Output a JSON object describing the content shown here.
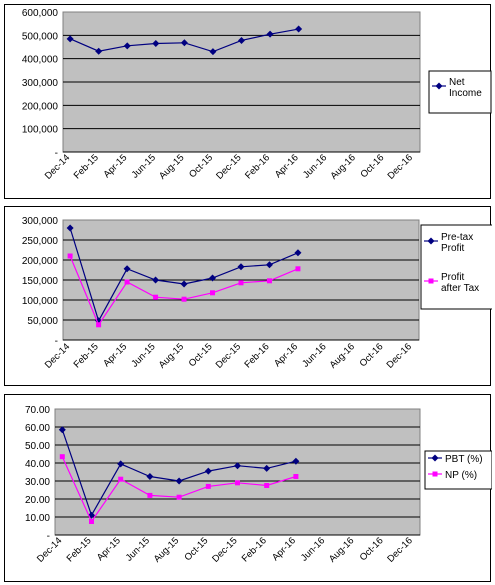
{
  "chart_data": [
    {
      "type": "line",
      "categories": [
        "Dec-14",
        "Feb-15",
        "Apr-15",
        "Jun-15",
        "Aug-15",
        "Oct-15",
        "Dec-15",
        "Feb-16",
        "Apr-16",
        "Jun-16",
        "Aug-16",
        "Oct-16",
        "Dec-16"
      ],
      "y_ticks": [
        "600,000",
        "500,000",
        "400,000",
        "300,000",
        "200,000",
        "100,000",
        "-"
      ],
      "ylim": [
        0,
        600000
      ],
      "grid": true,
      "legend_position": "right",
      "series": [
        {
          "name": "Net Income",
          "name_lines": [
            "Net",
            "Income"
          ],
          "color": "#000080",
          "marker": "diamond",
          "points": [
            [
              0,
              485000
            ],
            [
              2,
              432000
            ],
            [
              4,
              455000
            ],
            [
              6,
              465000
            ],
            [
              8,
              468000
            ],
            [
              10,
              430000
            ],
            [
              12,
              478000
            ],
            [
              14,
              505000
            ],
            [
              16,
              527000
            ]
          ]
        }
      ]
    },
    {
      "type": "line",
      "categories": [
        "Dec-14",
        "Feb-15",
        "Apr-15",
        "Jun-15",
        "Aug-15",
        "Oct-15",
        "Dec-15",
        "Feb-16",
        "Apr-16",
        "Jun-16",
        "Aug-16",
        "Oct-16",
        "Dec-16"
      ],
      "y_ticks": [
        "300,000",
        "250,000",
        "200,000",
        "150,000",
        "100,000",
        "50,000",
        "-"
      ],
      "ylim": [
        0,
        300000
      ],
      "grid": true,
      "legend_position": "right",
      "series": [
        {
          "name": "Pre-tax Profit",
          "name_lines": [
            "Pre-tax",
            "Profit"
          ],
          "color": "#000080",
          "marker": "diamond",
          "points": [
            [
              0,
              280000
            ],
            [
              2,
              48000
            ],
            [
              4,
              178000
            ],
            [
              6,
              150000
            ],
            [
              8,
              140000
            ],
            [
              10,
              155000
            ],
            [
              12,
              183000
            ],
            [
              14,
              188000
            ],
            [
              16,
              218000
            ]
          ]
        },
        {
          "name": "Profit after Tax",
          "name_lines": [
            "Profit",
            "after Tax"
          ],
          "color": "#ff00ff",
          "marker": "square",
          "points": [
            [
              0,
              210000
            ],
            [
              2,
              38000
            ],
            [
              4,
              145000
            ],
            [
              6,
              107000
            ],
            [
              8,
              102000
            ],
            [
              10,
              118000
            ],
            [
              12,
              143000
            ],
            [
              14,
              148000
            ],
            [
              16,
              178000
            ]
          ]
        }
      ]
    },
    {
      "type": "line",
      "categories": [
        "Dec-14",
        "Feb-15",
        "Apr-15",
        "Jun-15",
        "Aug-15",
        "Oct-15",
        "Dec-15",
        "Feb-16",
        "Apr-16",
        "Jun-16",
        "Aug-16",
        "Oct-16",
        "Dec-16"
      ],
      "y_ticks": [
        "70.00",
        "60.00",
        "50.00",
        "40.00",
        "30.00",
        "20.00",
        "10.00",
        "-"
      ],
      "ylim": [
        0,
        70
      ],
      "grid": true,
      "legend_position": "right",
      "series": [
        {
          "name": "PBT (%)",
          "name_lines": [
            "PBT (%)"
          ],
          "color": "#000080",
          "marker": "diamond",
          "points": [
            [
              0,
              58.5
            ],
            [
              2,
              11
            ],
            [
              4,
              39.5
            ],
            [
              6,
              32.5
            ],
            [
              8,
              30
            ],
            [
              10,
              35.5
            ],
            [
              12,
              38.5
            ],
            [
              14,
              37
            ],
            [
              16,
              41
            ]
          ]
        },
        {
          "name": "NP (%)",
          "name_lines": [
            "NP (%)"
          ],
          "color": "#ff00ff",
          "marker": "square",
          "points": [
            [
              0,
              43.5
            ],
            [
              2,
              7.5
            ],
            [
              4,
              31
            ],
            [
              6,
              22
            ],
            [
              8,
              21
            ],
            [
              10,
              27
            ],
            [
              12,
              29
            ],
            [
              14,
              27.5
            ],
            [
              16,
              32.5
            ]
          ]
        }
      ]
    }
  ]
}
